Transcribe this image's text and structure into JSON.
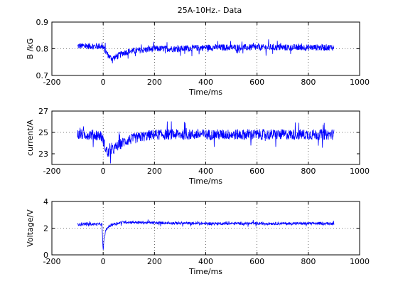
{
  "figure": {
    "title": "25A-10Hz.- Data",
    "background": "#ffffff",
    "line_color": "#0000ff",
    "grid_style": "dotted"
  },
  "chart_data": [
    {
      "type": "line",
      "title": "25A-10Hz.- Data",
      "xlabel": "Time/ms",
      "ylabel": "B /kG",
      "xlim": [
        -200,
        1000
      ],
      "ylim": [
        0.7,
        0.9
      ],
      "xticks": [
        -200,
        0,
        200,
        400,
        600,
        800,
        1000
      ],
      "yticks": [
        0.7,
        0.8,
        0.9
      ],
      "xtick_labels": [
        "-200",
        "0",
        "200",
        "400",
        "600",
        "800",
        "1000"
      ],
      "ytick_labels": [
        "0.7",
        "0.8",
        "0.9"
      ],
      "grid": true,
      "series": [
        {
          "color": "#0000ff",
          "x": [
            -100,
            -50,
            -10,
            0,
            10,
            20,
            30,
            40,
            60,
            80,
            100,
            150,
            200,
            300,
            400,
            500,
            600,
            700,
            800,
            900
          ],
          "y": [
            0.81,
            0.81,
            0.81,
            0.805,
            0.79,
            0.775,
            0.765,
            0.765,
            0.775,
            0.785,
            0.79,
            0.795,
            0.8,
            0.8,
            0.805,
            0.805,
            0.805,
            0.805,
            0.805,
            0.805
          ],
          "noise": 0.012
        }
      ]
    },
    {
      "type": "line",
      "title": "",
      "xlabel": "Time/ms",
      "ylabel": "current/A",
      "xlim": [
        -200,
        1000
      ],
      "ylim": [
        22,
        27
      ],
      "xticks": [
        -200,
        0,
        200,
        400,
        600,
        800,
        1000
      ],
      "yticks": [
        23,
        25,
        27
      ],
      "xtick_labels": [
        "-200",
        "0",
        "200",
        "400",
        "600",
        "800",
        "1000"
      ],
      "ytick_labels": [
        "23",
        "25",
        "27"
      ],
      "grid": true,
      "series": [
        {
          "color": "#0000ff",
          "x": [
            -100,
            -50,
            -10,
            0,
            10,
            20,
            40,
            60,
            80,
            100,
            150,
            200,
            300,
            400,
            500,
            600,
            700,
            800,
            900
          ],
          "y": [
            24.8,
            24.8,
            24.7,
            24.3,
            23.4,
            23.1,
            23.4,
            23.8,
            24.1,
            24.3,
            24.6,
            24.8,
            24.8,
            24.8,
            24.8,
            24.8,
            24.8,
            24.8,
            24.8
          ],
          "noise": 0.5
        }
      ]
    },
    {
      "type": "line",
      "title": "",
      "xlabel": "Time/ms",
      "ylabel": "Voltage/V",
      "xlim": [
        -200,
        1000
      ],
      "ylim": [
        0,
        4
      ],
      "xticks": [
        -200,
        0,
        200,
        400,
        600,
        800,
        1000
      ],
      "yticks": [
        0,
        2,
        4
      ],
      "xtick_labels": [
        "-200",
        "0",
        "200",
        "400",
        "600",
        "800",
        "1000"
      ],
      "ytick_labels": [
        "0",
        "2",
        "4"
      ],
      "grid": true,
      "series": [
        {
          "color": "#0000ff",
          "x": [
            -100,
            -50,
            -5,
            0,
            2,
            5,
            10,
            20,
            40,
            60,
            80,
            100,
            200,
            400,
            600,
            800,
            900
          ],
          "y": [
            2.3,
            2.3,
            2.3,
            0.3,
            0.8,
            1.4,
            1.8,
            2.1,
            2.3,
            2.4,
            2.45,
            2.45,
            2.4,
            2.35,
            2.35,
            2.35,
            2.35
          ],
          "noise": 0.1
        }
      ]
    }
  ]
}
